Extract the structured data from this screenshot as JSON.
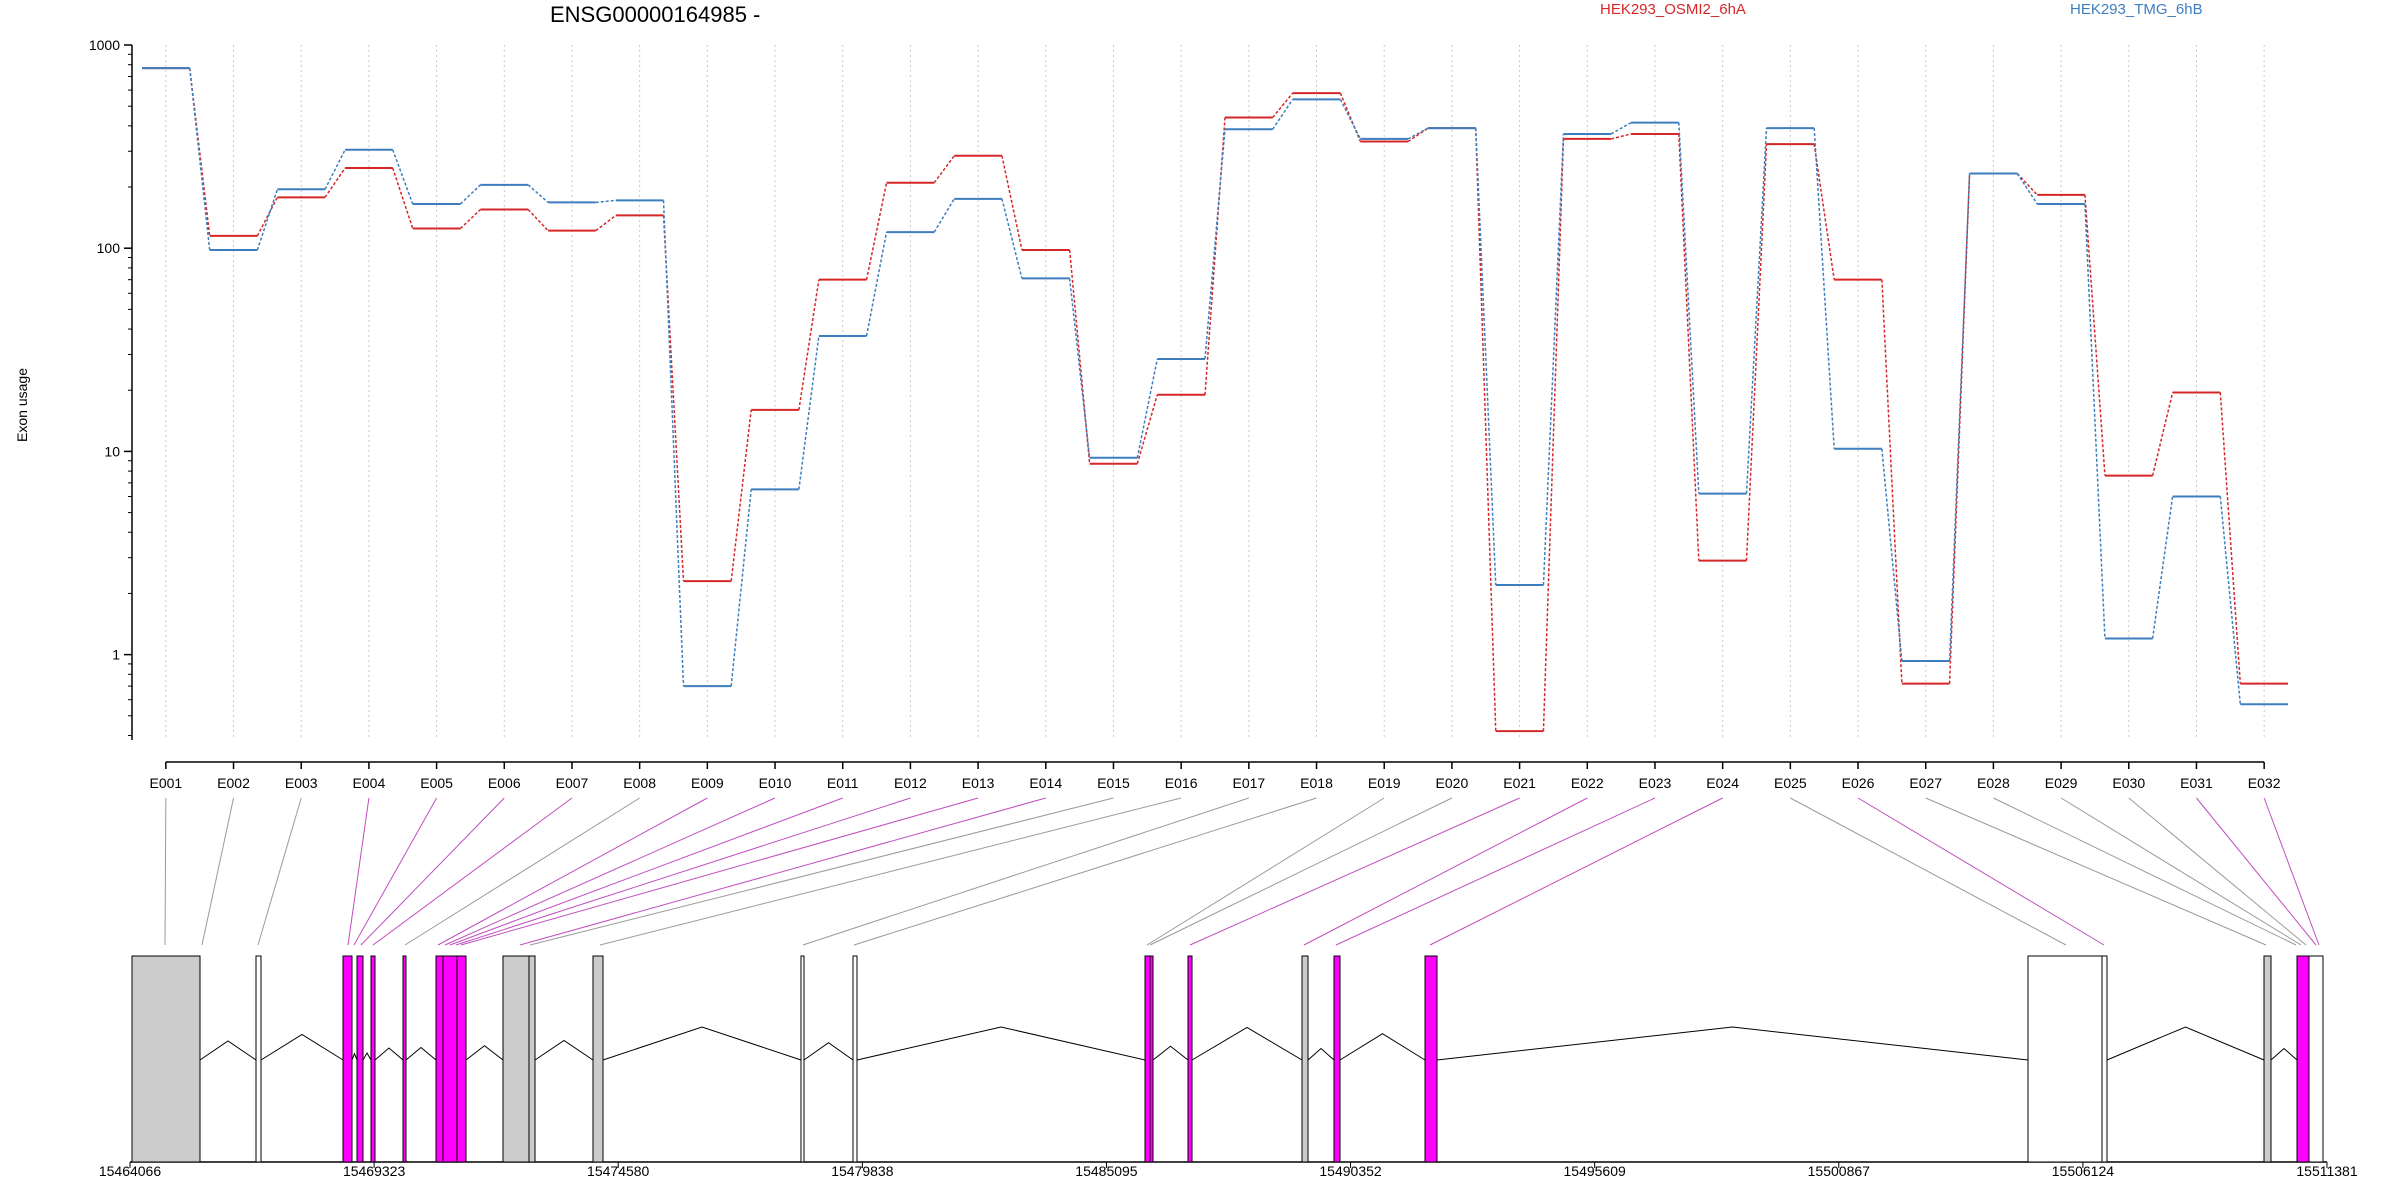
{
  "chart_data": {
    "type": "line",
    "title": "ENSG00000164985 -",
    "ylabel": "Exon usage",
    "xlabel": "",
    "yscale": "log",
    "ylim": [
      0.38,
      1000
    ],
    "yticks": [
      "1",
      "10",
      "100",
      "1000"
    ],
    "grid": "vertical dotted lines at each exon",
    "legend_placement": "top-right",
    "categories": [
      "E001",
      "E002",
      "E003",
      "E004",
      "E005",
      "E006",
      "E007",
      "E008",
      "E009",
      "E010",
      "E011",
      "E012",
      "E013",
      "E014",
      "E015",
      "E016",
      "E017",
      "E018",
      "E019",
      "E020",
      "E021",
      "E022",
      "E023",
      "E024",
      "E025",
      "E026",
      "E027",
      "E028",
      "E029",
      "E030",
      "E031",
      "E032"
    ],
    "series": [
      {
        "name": "HEK293_OSMI2_6hA",
        "color": "#d62728",
        "values": [
          770,
          115,
          178,
          248,
          125,
          155,
          122,
          145,
          2.3,
          16,
          70,
          210,
          285,
          98,
          8.7,
          19,
          440,
          580,
          335,
          390,
          0.42,
          345,
          365,
          2.9,
          325,
          70,
          0.72,
          233,
          183,
          7.6,
          19.5,
          0.72
        ]
      },
      {
        "name": "HEK293_TMG_6hB",
        "color": "#3d7ebf",
        "values": [
          770,
          98,
          195,
          305,
          165,
          205,
          168,
          172,
          0.7,
          6.5,
          37,
          120,
          175,
          71,
          9.3,
          28.5,
          385,
          540,
          345,
          390,
          2.2,
          365,
          415,
          6.2,
          390,
          10.3,
          0.93,
          233,
          165,
          1.2,
          6,
          0.57
        ]
      }
    ],
    "gene_axis": {
      "tick_labels": [
        "15464066",
        "15469323",
        "15474580",
        "15479838",
        "15485095",
        "15490352",
        "15495609",
        "15500867",
        "15506124",
        "15511381"
      ],
      "start": 15464066,
      "end": 15511381
    },
    "highlighted_exons": [
      "E004",
      "E005",
      "E006",
      "E007",
      "E009",
      "E010",
      "E011",
      "E012",
      "E013",
      "E014",
      "E021",
      "E022",
      "E023",
      "E024",
      "E026",
      "E031",
      "E032"
    ]
  }
}
